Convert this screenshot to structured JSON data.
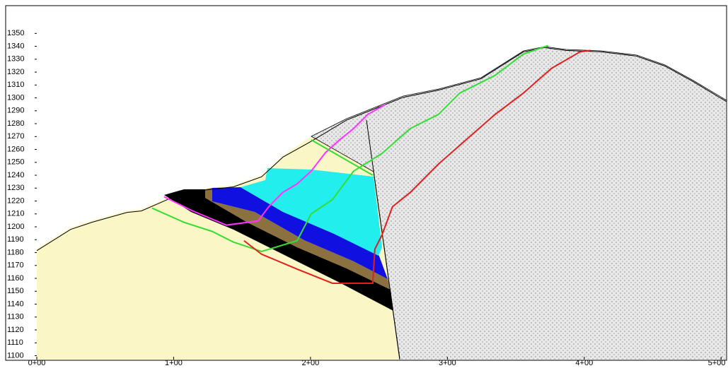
{
  "chart_data": {
    "type": "line",
    "xlim": [
      0,
      504
    ],
    "ylim": [
      1097,
      1371
    ],
    "xticks": [
      {
        "value": 0,
        "label": "0+00"
      },
      {
        "value": 100,
        "label": "1+00"
      },
      {
        "value": 200,
        "label": "2+00"
      },
      {
        "value": 300,
        "label": "3+00"
      },
      {
        "value": 400,
        "label": "4+00"
      },
      {
        "value": 500,
        "label": "5+00"
      }
    ],
    "yticks": [
      1100,
      1110,
      1120,
      1130,
      1140,
      1150,
      1160,
      1170,
      1180,
      1190,
      1200,
      1210,
      1220,
      1230,
      1240,
      1250,
      1260,
      1270,
      1280,
      1290,
      1300,
      1310,
      1320,
      1330,
      1340,
      1350
    ],
    "series": [
      {
        "color": "#000000",
        "x": [
          0,
          24.8,
          40.3,
          66.1,
          76.4,
          107.5,
          143.7,
          164.3,
          180,
          200.5,
          226.4,
          252.2,
          267.7,
          293.5,
          324.5,
          355.5,
          371,
          386.6,
          412.4,
          438.2,
          458.9,
          479.6,
          503.9
        ],
        "values": [
          1181.5,
          1198,
          1203.5,
          1211.2,
          1212.3,
          1226.7,
          1231,
          1238.8,
          1254.2,
          1266.3,
          1282.8,
          1293.8,
          1300.4,
          1306,
          1314.8,
          1335.7,
          1339,
          1336.8,
          1335.7,
          1332.4,
          1324.7,
          1312.6,
          1297.1
        ]
      },
      {
        "color": "#ff33ff",
        "x": [
          93,
          112.7,
          138.5,
          161.8,
          169.5,
          179.8,
          190.2,
          200.5,
          210.9,
          221.2,
          231.5,
          241.9,
          254.8
        ],
        "values": [
          1223.3,
          1212.9,
          1201.3,
          1204.6,
          1215.6,
          1226.7,
          1233.3,
          1243.2,
          1257.5,
          1267.4,
          1276.2,
          1287.2,
          1294.9
        ]
      },
      {
        "color": "#33dd33",
        "x": [
          84.2,
          107.5,
          128.2,
          143.7,
          164.3,
          190.2,
          200.5,
          216,
          231.5,
          252.2,
          272.9,
          293.5,
          309,
          334.9,
          355.5,
          373.6
        ],
        "values": [
          1214.5,
          1203.5,
          1196.4,
          1188.1,
          1180.9,
          1189.2,
          1210.1,
          1221.1,
          1243.2,
          1256.9,
          1276.2,
          1287.2,
          1303.7,
          1317.5,
          1334,
          1340.6
        ]
      },
      {
        "color": "#33dd33",
        "x": [
          200.5,
          245.5
        ],
        "values": [
          1267.4,
          1240
        ]
      },
      {
        "color": "#e02020",
        "x": [
          151.4,
          164.3,
          190.2,
          216,
          245.5,
          247,
          252.2,
          259.9,
          272.9,
          293.5,
          314.2,
          334.9,
          355.5,
          376.2,
          396.9,
          404.7
        ],
        "values": [
          1189.2,
          1178.7,
          1167.2,
          1156.2,
          1156.2,
          1182.6,
          1193.6,
          1215.6,
          1226.7,
          1248.7,
          1268,
          1287.2,
          1303.7,
          1323,
          1335.7,
          1336.8
        ]
      }
    ]
  }
}
